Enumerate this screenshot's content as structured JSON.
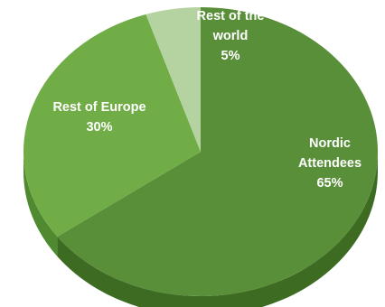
{
  "chart_data": {
    "type": "pie",
    "style": "3d",
    "start_angle_deg": 0,
    "direction": "clockwise",
    "slices": [
      {
        "name_lines": [
          "Nordic",
          "Attendees"
        ],
        "value": 65,
        "value_label": "65%",
        "color": "#5a8f3a",
        "side_color": "#3d6b22"
      },
      {
        "name_lines": [
          "Rest of Europe"
        ],
        "value": 30,
        "value_label": "30%",
        "color": "#70ad47",
        "side_color": "#4f8a30"
      },
      {
        "name_lines": [
          "Rest of the",
          "world"
        ],
        "value": 5,
        "value_label": "5%",
        "color": "#b5d3a1",
        "side_color": "#8fb879"
      }
    ]
  }
}
